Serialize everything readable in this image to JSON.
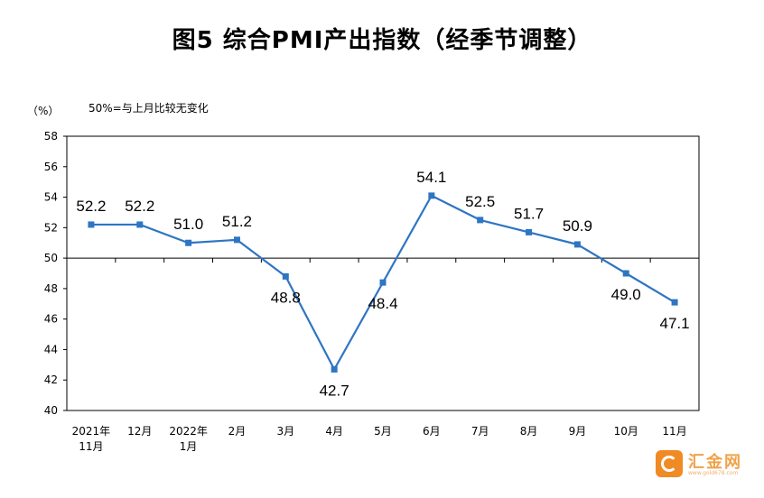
{
  "title": "图5 综合PMI产出指数（经季节调整）",
  "chart_data": {
    "type": "line",
    "unit_label": "（%）",
    "annotation": "50%=与上月比较无变化",
    "categories": [
      [
        "2021年",
        "11月"
      ],
      [
        "12月"
      ],
      [
        "2022年",
        "1月"
      ],
      [
        "2月"
      ],
      [
        "3月"
      ],
      [
        "4月"
      ],
      [
        "5月"
      ],
      [
        "6月"
      ],
      [
        "7月"
      ],
      [
        "8月"
      ],
      [
        "9月"
      ],
      [
        "10月"
      ],
      [
        "11月"
      ]
    ],
    "values": [
      52.2,
      52.2,
      51.0,
      51.2,
      48.8,
      42.7,
      48.4,
      54.1,
      52.5,
      51.7,
      50.9,
      49.0,
      47.1
    ],
    "value_labels": [
      "52.2",
      "52.2",
      "51.0",
      "51.2",
      "48.8",
      "42.7",
      "48.4",
      "54.1",
      "52.5",
      "51.7",
      "50.9",
      "49.0",
      "47.1"
    ],
    "label_position": [
      "above",
      "above",
      "above",
      "above",
      "below",
      "below",
      "below",
      "above",
      "above",
      "above",
      "above",
      "below",
      "below"
    ],
    "ylim": [
      40,
      58
    ],
    "yticks": [
      40,
      42,
      44,
      46,
      48,
      50,
      52,
      54,
      56,
      58
    ],
    "reference_line": 50,
    "grid": false,
    "legend": "none",
    "line_color": "#2e75c3"
  },
  "watermark": {
    "name": "汇金网",
    "url": "www.gold678.com"
  }
}
